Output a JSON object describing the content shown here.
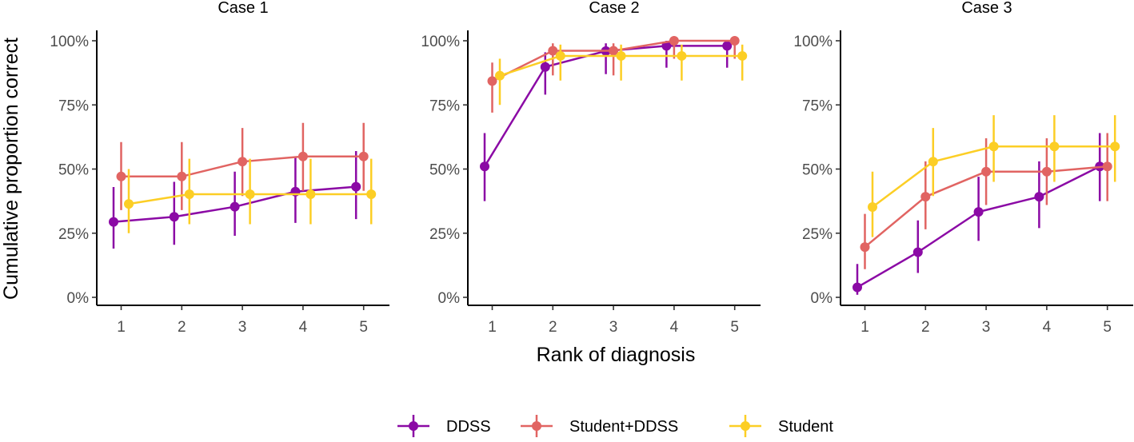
{
  "chart_data": {
    "type": "line",
    "xlabel": "Rank of diagnosis",
    "ylabel": "Cumulative proportion correct",
    "x": [
      1,
      2,
      3,
      4,
      5
    ],
    "x_tick_labels": [
      "1",
      "2",
      "3",
      "4",
      "5"
    ],
    "ylim": [
      0,
      1
    ],
    "y_ticks": [
      0,
      0.25,
      0.5,
      0.75,
      1.0
    ],
    "y_tick_labels": [
      "0%",
      "25%",
      "50%",
      "75%",
      "100%"
    ],
    "grid": false,
    "legend_position": "bottom",
    "legend": [
      {
        "name": "DDSS",
        "color": "#8b0aa5"
      },
      {
        "name": "Student+DDSS",
        "color": "#e16462"
      },
      {
        "name": "Student",
        "color": "#fcce25"
      }
    ],
    "panels": [
      {
        "title": "Case 1",
        "series": [
          {
            "name": "DDSS",
            "values": [
              0.294,
              0.314,
              0.353,
              0.412,
              0.431
            ],
            "lower": [
              0.19,
              0.205,
              0.24,
              0.29,
              0.305
            ],
            "upper": [
              0.43,
              0.45,
              0.49,
              0.55,
              0.57
            ]
          },
          {
            "name": "Student+DDSS",
            "values": [
              0.471,
              0.471,
              0.529,
              0.549,
              0.549
            ],
            "lower": [
              0.34,
              0.34,
              0.395,
              0.415,
              0.415
            ],
            "upper": [
              0.605,
              0.605,
              0.66,
              0.68,
              0.68
            ]
          },
          {
            "name": "Student",
            "values": [
              0.364,
              0.402,
              0.402,
              0.402,
              0.402
            ],
            "lower": [
              0.25,
              0.285,
              0.285,
              0.285,
              0.285
            ],
            "upper": [
              0.5,
              0.54,
              0.54,
              0.54,
              0.54
            ]
          }
        ]
      },
      {
        "title": "Case 2",
        "series": [
          {
            "name": "DDSS",
            "values": [
              0.51,
              0.898,
              0.96,
              0.98,
              0.98
            ],
            "lower": [
              0.375,
              0.79,
              0.87,
              0.895,
              0.895
            ],
            "upper": [
              0.64,
              0.955,
              0.99,
              1.0,
              1.0
            ]
          },
          {
            "name": "Student+DDSS",
            "values": [
              0.843,
              0.961,
              0.961,
              1.0,
              1.0
            ],
            "lower": [
              0.72,
              0.865,
              0.865,
              0.93,
              0.93
            ],
            "upper": [
              0.915,
              0.99,
              0.99,
              1.0,
              1.0
            ]
          },
          {
            "name": "Student",
            "values": [
              0.864,
              0.941,
              0.941,
              0.941,
              0.941
            ],
            "lower": [
              0.75,
              0.845,
              0.845,
              0.845,
              0.845
            ],
            "upper": [
              0.93,
              0.985,
              0.985,
              0.985,
              0.985
            ]
          }
        ]
      },
      {
        "title": "Case 3",
        "series": [
          {
            "name": "DDSS",
            "values": [
              0.039,
              0.176,
              0.333,
              0.392,
              0.51
            ],
            "lower": [
              0.01,
              0.095,
              0.22,
              0.27,
              0.375
            ],
            "upper": [
              0.13,
              0.3,
              0.47,
              0.53,
              0.64
            ]
          },
          {
            "name": "Student+DDSS",
            "values": [
              0.196,
              0.392,
              0.49,
              0.49,
              0.51
            ],
            "lower": [
              0.11,
              0.265,
              0.36,
              0.36,
              0.375
            ],
            "upper": [
              0.325,
              0.53,
              0.62,
              0.62,
              0.64
            ]
          },
          {
            "name": "Student",
            "values": [
              0.352,
              0.529,
              0.588,
              0.588,
              0.588
            ],
            "lower": [
              0.235,
              0.395,
              0.45,
              0.45,
              0.45
            ],
            "upper": [
              0.49,
              0.66,
              0.71,
              0.71,
              0.71
            ]
          }
        ]
      }
    ]
  }
}
